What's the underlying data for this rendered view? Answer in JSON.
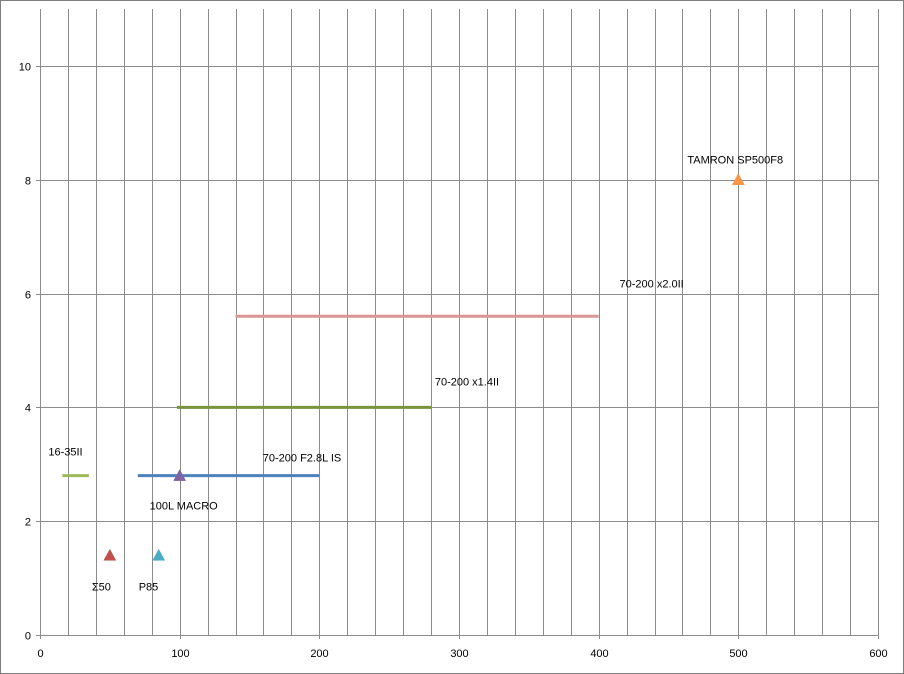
{
  "chart_data": {
    "type": "scatter",
    "title": "",
    "xlabel": "",
    "ylabel": "",
    "xlim": [
      0,
      600
    ],
    "ylim": [
      0,
      11
    ],
    "x_ticks": [
      0,
      100,
      200,
      300,
      400,
      500,
      600
    ],
    "y_ticks": [
      0,
      2,
      4,
      6,
      8,
      10
    ],
    "x_gridline_step": 20,
    "y_gridline_step": 2,
    "grid": true,
    "legend": "none",
    "ranges": [
      {
        "label": "16-35II",
        "x_start": 16,
        "x_end": 35,
        "y": 2.8,
        "color": "#9bbb59"
      },
      {
        "label": "70-200 F2.8L IS",
        "x_start": 70,
        "x_end": 200,
        "y": 2.8,
        "color": "#4f81bd"
      },
      {
        "label": "70-200 x1.4II",
        "x_start": 98,
        "x_end": 280,
        "y": 4.0,
        "color": "#77933c"
      },
      {
        "label": "70-200 x2.0II",
        "x_start": 140,
        "x_end": 400,
        "y": 5.6,
        "color": "#d99694"
      }
    ],
    "points": [
      {
        "label": "100L MACRO",
        "x": 100,
        "y": 2.8,
        "color": "#8064a2"
      },
      {
        "label": "Σ50",
        "x": 50,
        "y": 1.4,
        "color": "#c0504d"
      },
      {
        "label": "P85",
        "x": 85,
        "y": 1.4,
        "color": "#4bacc6"
      },
      {
        "label": "TAMRON SP500F8",
        "x": 500,
        "y": 8.0,
        "color": "#f79646"
      }
    ]
  }
}
